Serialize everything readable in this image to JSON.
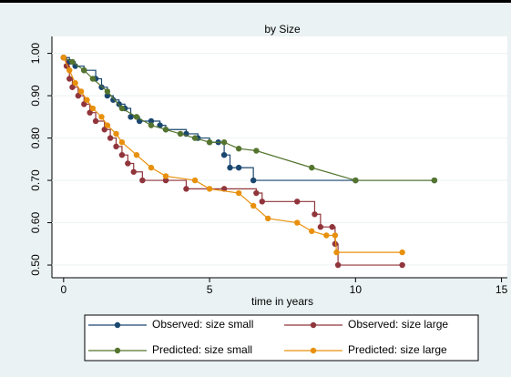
{
  "chart_data": {
    "type": "line",
    "title": "by Size",
    "xlabel": "time in years",
    "xlim": [
      -0.4,
      15.2
    ],
    "xticks": [
      0,
      5,
      10,
      15
    ],
    "ylim": [
      0.47,
      1.04
    ],
    "yticks": [
      {
        "value": 0.5,
        "label": "0.50"
      },
      {
        "value": 0.6,
        "label": "0.60"
      },
      {
        "value": 0.7,
        "label": "0.70"
      },
      {
        "value": 0.8,
        "label": "0.80"
      },
      {
        "value": 0.9,
        "label": "0.90"
      },
      {
        "value": 1,
        "label": "1.00"
      }
    ],
    "grid": true,
    "legend": "bottom",
    "series": [
      {
        "name": "Observed: size small",
        "color": "#1a476f",
        "connect": "step",
        "x": [
          0,
          0.2,
          0.4,
          0.7,
          1.1,
          1.3,
          1.5,
          1.7,
          1.9,
          2.1,
          2.3,
          2.6,
          3.0,
          3.3,
          3.5,
          4.2,
          4.6,
          5.0,
          5.3,
          5.5,
          5.7,
          6.0,
          6.5,
          10,
          12.7
        ],
        "values": [
          0.99,
          0.98,
          0.97,
          0.96,
          0.94,
          0.92,
          0.9,
          0.89,
          0.88,
          0.87,
          0.85,
          0.84,
          0.84,
          0.83,
          0.82,
          0.81,
          0.8,
          0.79,
          0.79,
          0.76,
          0.73,
          0.73,
          0.7,
          0.7,
          0.7
        ]
      },
      {
        "name": "Observed: size large",
        "color": "#90353b",
        "connect": "step",
        "x": [
          0,
          0.1,
          0.2,
          0.3,
          0.5,
          0.7,
          0.9,
          1.1,
          1.4,
          1.6,
          1.8,
          2.0,
          2.2,
          2.4,
          2.7,
          3.5,
          4.2,
          5.5,
          6.6,
          6.8,
          8,
          8.6,
          8.8,
          9.2,
          9.3,
          9.4,
          11.6
        ],
        "values": [
          0.99,
          0.97,
          0.94,
          0.92,
          0.9,
          0.88,
          0.86,
          0.84,
          0.82,
          0.8,
          0.78,
          0.76,
          0.74,
          0.72,
          0.7,
          0.7,
          0.68,
          0.68,
          0.67,
          0.65,
          0.65,
          0.62,
          0.59,
          0.59,
          0.55,
          0.5,
          0.5
        ]
      },
      {
        "name": "Predicted: size small",
        "color": "#55752f",
        "connect": "straight",
        "x": [
          0,
          0.3,
          0.7,
          1.0,
          1.5,
          2,
          2.5,
          3,
          3.5,
          4,
          4.5,
          5,
          5.5,
          6,
          6.6,
          8.5,
          10,
          12.7
        ],
        "values": [
          0.99,
          0.98,
          0.96,
          0.94,
          0.91,
          0.87,
          0.85,
          0.83,
          0.82,
          0.81,
          0.8,
          0.79,
          0.79,
          0.775,
          0.77,
          0.73,
          0.7,
          0.7
        ]
      },
      {
        "name": "Predicted: size large",
        "color": "#e8900c",
        "connect": "straight",
        "x": [
          0,
          0.2,
          0.4,
          0.6,
          0.8,
          1.0,
          1.3,
          1.5,
          1.8,
          2.0,
          2.5,
          3,
          3.5,
          4.5,
          5,
          6,
          6.5,
          7,
          8,
          8.5,
          9,
          9.3,
          9.35,
          11.6
        ],
        "values": [
          0.99,
          0.96,
          0.93,
          0.91,
          0.89,
          0.87,
          0.85,
          0.83,
          0.81,
          0.79,
          0.76,
          0.73,
          0.71,
          0.7,
          0.68,
          0.67,
          0.64,
          0.61,
          0.6,
          0.58,
          0.57,
          0.57,
          0.53,
          0.53
        ]
      }
    ]
  }
}
